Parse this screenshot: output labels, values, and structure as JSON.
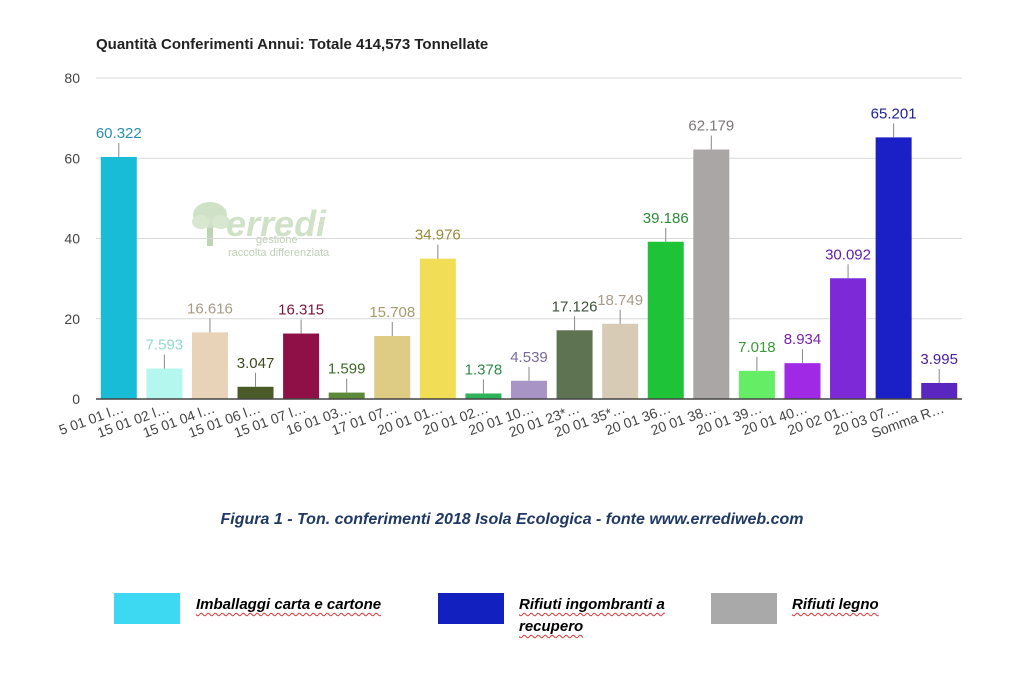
{
  "chart_data": {
    "type": "bar",
    "title": "Quantità Conferimenti Annui: Totale 414,573 Tonnellate",
    "xlabel": "",
    "ylabel": "",
    "ylim": [
      0,
      80
    ],
    "yticks": [
      "0",
      "20",
      "40",
      "60",
      "80"
    ],
    "grid": true,
    "categories": [
      "5 01 01 l…",
      "15 01 02 l…",
      "15 01 04 l…",
      "15 01 06 l…",
      "15 01 07 l…",
      "16 01 03…",
      "17 01 07…",
      "20 01 01…",
      "20 01 02…",
      "20 01 10…",
      "20 01 23*…",
      "20 01 35*…",
      "20 01 36…",
      "20 01 38…",
      "20 01 39…",
      "20 01 40…",
      "20 02 01…",
      "20 03 07…",
      "Somma R…"
    ],
    "values": [
      60.322,
      7.593,
      16.616,
      3.047,
      16.315,
      1.599,
      15.708,
      34.976,
      1.378,
      4.539,
      17.126,
      18.749,
      39.186,
      62.179,
      7.018,
      8.934,
      30.092,
      65.201,
      3.995
    ],
    "value_labels": [
      "60.322",
      "7.593",
      "16.616",
      "3.047",
      "16.315",
      "1.599",
      "15.708",
      "34.976",
      "1.378",
      "4.539",
      "17.126",
      "18.749",
      "39.186",
      "62.179",
      "7.018",
      "8.934",
      "30.092",
      "65.201",
      "3.995"
    ],
    "colors": [
      "#19bcd6",
      "#b3f7ee",
      "#e8d3b8",
      "#4a5a28",
      "#8e1046",
      "#5d8a3a",
      "#decb84",
      "#f2dd57",
      "#2fb35a",
      "#a895c6",
      "#5d7352",
      "#d8cbb6",
      "#1fc337",
      "#aaa6a6",
      "#66ed66",
      "#a029e6",
      "#7d29d8",
      "#1b1fc6",
      "#5b25c0"
    ],
    "label_colors": [
      "#2b8fae",
      "#8fd9cf",
      "#a89a86",
      "#3d4a1e",
      "#7a1438",
      "#3d6b28",
      "#a8996a",
      "#9a8a3a",
      "#2f8a4a",
      "#7a6a9c",
      "#3d5038",
      "#a89a88",
      "#2a8a36",
      "#7a7676",
      "#3a9a3a",
      "#7a20b0",
      "#6420b0",
      "#20209a",
      "#4a20a0"
    ]
  },
  "watermark": {
    "logo_text": "erredi",
    "line1": "gestione",
    "line2": "raccolta differenziata"
  },
  "caption": "Figura 1 - Ton. conferimenti 2018 Isola Ecologica - fonte www.errediweb.com",
  "legend": [
    {
      "label": "Imballaggi carta e cartone",
      "color": "#3dd8f2"
    },
    {
      "label": "Rifiuti ingombranti a recupero",
      "color": "#1320c0"
    },
    {
      "label": "Rifiuti legno",
      "color": "#a9a9a9"
    }
  ]
}
